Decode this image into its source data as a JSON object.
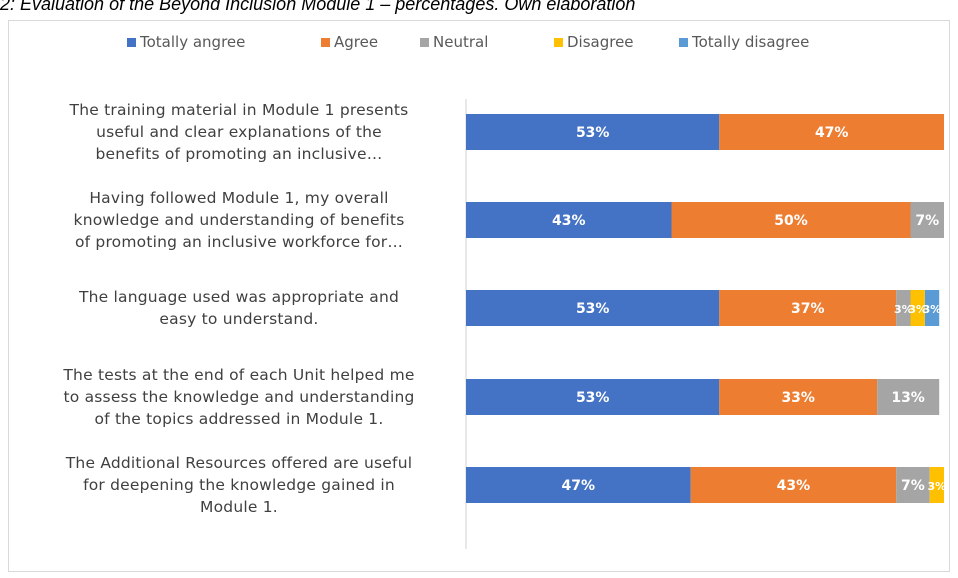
{
  "caption": "2: Evaluation of the Beyond Inclusion Module 1 – percentages. Own elaboration",
  "chart_data": {
    "type": "bar",
    "orientation": "horizontal",
    "stacked": true,
    "categories": [
      "The training material in Module 1 presents useful and clear explanations of the benefits of promoting an inclusive…",
      "Having followed Module 1, my overall knowledge and understanding of benefits of promoting an inclusive workforce for…",
      "The language used was appropriate and easy to understand.",
      "The tests at the end of each Unit helped me to assess the knowledge and understanding of the topics addressed in Module 1.",
      "The Additional Resources offered are useful for deepening the knowledge gained in Module 1."
    ],
    "category_lines": [
      [
        "The training material in Module 1 presents",
        "useful and clear explanations of the",
        "benefits of promoting an inclusive…"
      ],
      [
        "Having followed Module 1, my overall",
        "knowledge and understanding of benefits",
        "of promoting an inclusive workforce for…"
      ],
      [
        "The language used was appropriate and",
        "easy to understand."
      ],
      [
        "The tests at the end of each Unit helped me",
        "to assess the knowledge and understanding",
        "of the topics addressed in Module 1."
      ],
      [
        "The Additional Resources offered are useful",
        "for deepening the knowledge gained in",
        "Module 1."
      ]
    ],
    "series": [
      {
        "name": "Totally angree",
        "color": "#4472c4",
        "values": [
          53,
          43,
          53,
          53,
          47
        ],
        "labels": [
          "53%",
          "43%",
          "53%",
          "53%",
          "47%"
        ]
      },
      {
        "name": "Agree",
        "color": "#ed7d31",
        "values": [
          47,
          50,
          37,
          33,
          43
        ],
        "labels": [
          "47%",
          "50%",
          "37%",
          "33%",
          "43%"
        ]
      },
      {
        "name": "Neutral",
        "color": "#a5a5a5",
        "values": [
          0,
          7,
          3,
          13,
          7
        ],
        "labels": [
          "",
          "7%",
          "3%",
          "13%",
          "7%"
        ]
      },
      {
        "name": "Disagree",
        "color": "#ffc000",
        "values": [
          0,
          0,
          3,
          0,
          3
        ],
        "labels": [
          "",
          "",
          "3%",
          "",
          "3%"
        ]
      },
      {
        "name": "Totally disagree",
        "color": "#5b9bd5",
        "values": [
          0,
          0,
          3,
          0,
          0
        ],
        "labels": [
          "",
          "",
          "3%",
          "",
          ""
        ]
      }
    ],
    "xlim": [
      0,
      100
    ],
    "legend_position": "top",
    "grid": false
  }
}
